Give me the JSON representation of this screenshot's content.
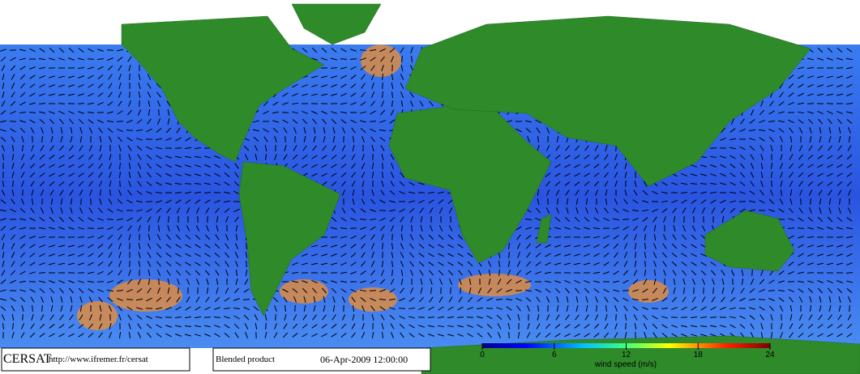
{
  "header": {
    "brand": "CERSAT",
    "url": "http://www.ifremer.fr/cersat",
    "product": "Blended product",
    "date": "06-Apr-2009 12:00:00"
  },
  "colorbar": {
    "label": "wind speed (m/s)",
    "lim": [
      0,
      24
    ],
    "ticks": [
      0,
      6,
      12,
      18,
      24
    ]
  }
}
